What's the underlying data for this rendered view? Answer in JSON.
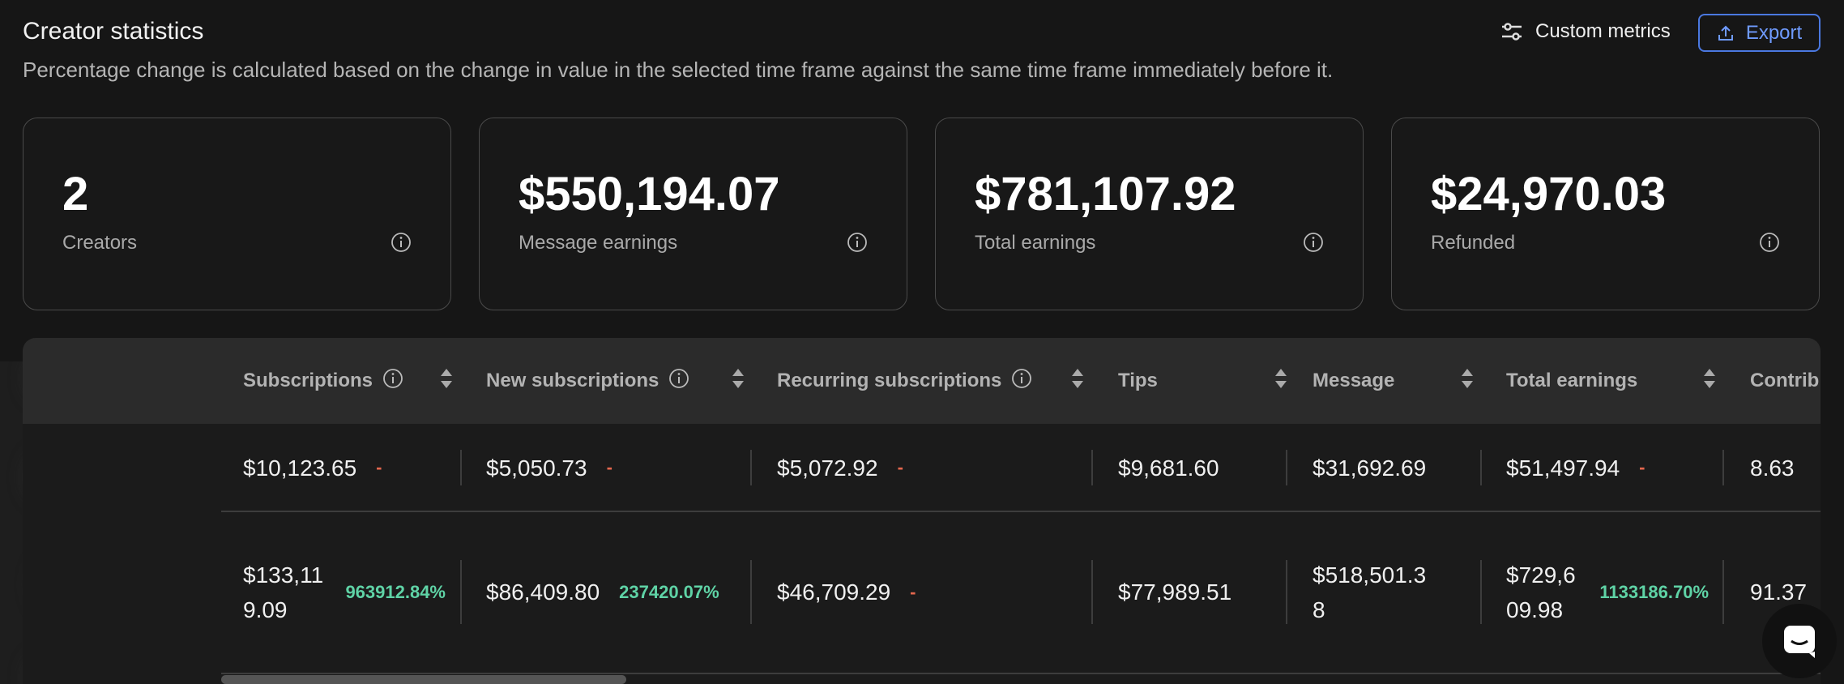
{
  "header": {
    "title": "Creator statistics",
    "subtitle": "Percentage change is calculated based on the change in value in the selected time frame against the same time frame immediately before it.",
    "custom_metrics": "Custom metrics",
    "export": "Export"
  },
  "cards": [
    {
      "value": "2",
      "label": "Creators"
    },
    {
      "value": "$550,194.07",
      "label": "Message earnings"
    },
    {
      "value": "$781,107.92",
      "label": "Total earnings"
    },
    {
      "value": "$24,970.03",
      "label": "Refunded"
    }
  ],
  "table": {
    "headers": [
      {
        "label": "Subscriptions",
        "info": true
      },
      {
        "label": "New subscriptions",
        "info": true
      },
      {
        "label": "Recurring subscriptions",
        "info": true
      },
      {
        "label": "Tips",
        "info": false
      },
      {
        "label": "Message",
        "info": false
      },
      {
        "label": "Total earnings",
        "info": false
      },
      {
        "label": "Contrib",
        "info": false
      }
    ],
    "rows": [
      [
        {
          "value": "$10,123.65",
          "change": "-",
          "change_color": "#e5674e"
        },
        {
          "value": "$5,050.73",
          "change": "-",
          "change_color": "#e5674e"
        },
        {
          "value": "$5,072.92",
          "change": "-",
          "change_color": "#e5674e"
        },
        {
          "value": "$9,681.60"
        },
        {
          "value": "$31,692.69"
        },
        {
          "value": "$51,497.94",
          "change": "-",
          "change_color": "#e5674e"
        },
        {
          "value": "8.63"
        }
      ],
      [
        {
          "value": "$133,119.09",
          "change": "963912.84%",
          "change_color": "#5fd3a6"
        },
        {
          "value": "$86,409.80",
          "change": "237420.07%",
          "change_color": "#5fd3a6"
        },
        {
          "value": "$46,709.29",
          "change": "-",
          "change_color": "#e5674e"
        },
        {
          "value": "$77,989.51"
        },
        {
          "value": "$518,501.38"
        },
        {
          "value": "$729,609.98",
          "change": "1133186.70%",
          "change_color": "#5fd3a6"
        },
        {
          "value": "91.37"
        }
      ]
    ]
  }
}
